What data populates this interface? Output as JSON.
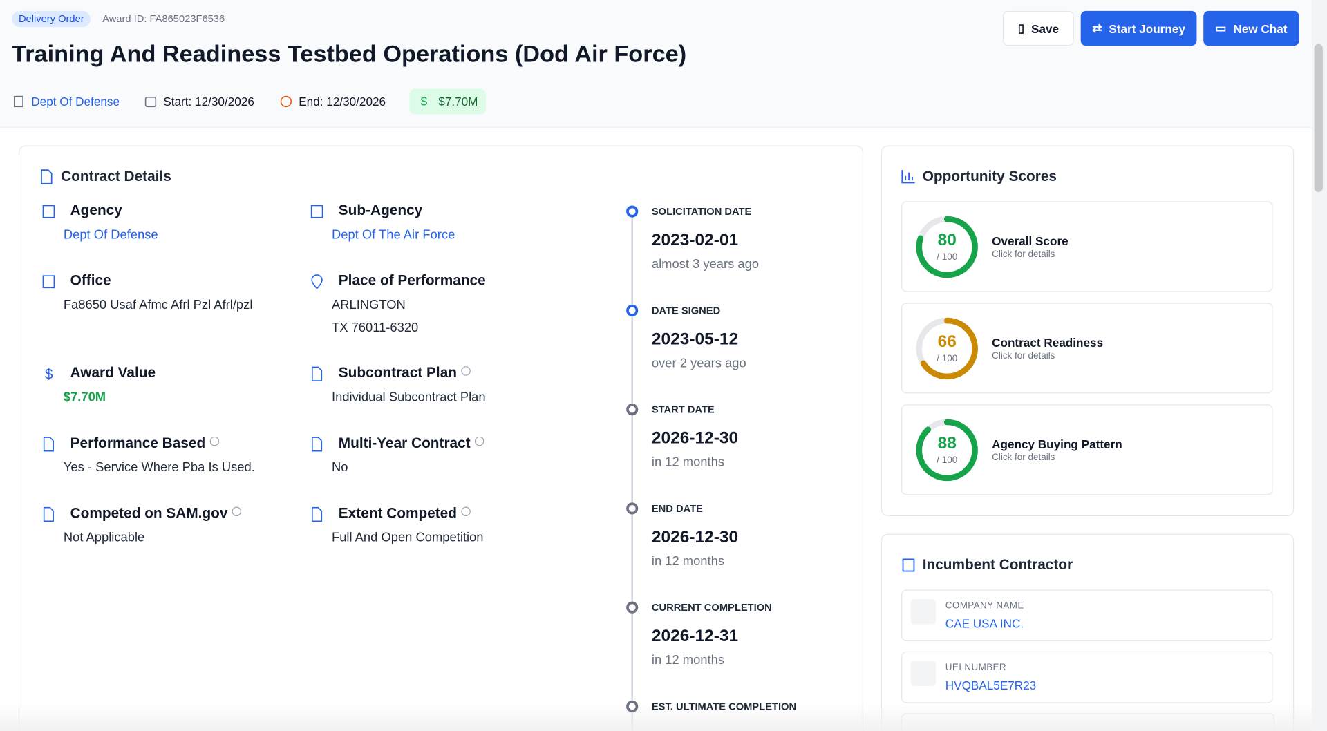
{
  "header": {
    "badge": "Delivery Order",
    "award_id": "Award ID: FA865023F6536",
    "title": "Training And Readiness Testbed Operations (Dod Air Force)",
    "meta": {
      "agency": "Dept Of Defense",
      "start": "Start: 12/30/2026",
      "end": "End: 12/30/2026",
      "value": "$7.70M"
    },
    "buttons": {
      "save": "Save",
      "journey": "Start Journey",
      "chat": "New Chat"
    }
  },
  "contract_details": {
    "title": "Contract Details",
    "fields": [
      {
        "label": "Agency",
        "value": "Dept Of Defense"
      },
      {
        "label": "Sub-Agency",
        "value": "Dept Of The Air Force"
      },
      {
        "label": "Office",
        "value": "Fa8650 Usaf Afmc Afrl Pzl Afrl/pzl"
      },
      {
        "label": "Place of Performance",
        "value": "ARLINGTON",
        "value2": "TX 76011-6320"
      },
      {
        "label": "Award Value",
        "value": "$7.70M"
      },
      {
        "label": "Subcontract Plan",
        "value": "Individual Subcontract Plan"
      },
      {
        "label": "Performance Based",
        "value": "Yes - Service Where Pba Is Used."
      },
      {
        "label": "Multi-Year Contract",
        "value": "No"
      },
      {
        "label": "Competed on SAM.gov",
        "value": "Not Applicable"
      },
      {
        "label": "Extent Competed",
        "value": "Full And Open Competition"
      }
    ],
    "timeline": [
      {
        "label": "SOLICITATION DATE",
        "date": "2023-02-01",
        "relative": "almost 3 years ago"
      },
      {
        "label": "DATE SIGNED",
        "date": "2023-05-12",
        "relative": "over 2 years ago"
      },
      {
        "label": "START DATE",
        "date": "2026-12-30",
        "relative": "in 12 months"
      },
      {
        "label": "END DATE",
        "date": "2026-12-30",
        "relative": "in 12 months"
      },
      {
        "label": "CURRENT COMPLETION",
        "date": "2026-12-31",
        "relative": "in 12 months"
      },
      {
        "label": "EST. ULTIMATE COMPLETION"
      }
    ]
  },
  "scores": {
    "title": "Opportunity Scores",
    "items": [
      {
        "name": "Overall Score",
        "value": 80,
        "max": {
          "value": 100,
          "label": "/ 100"
        },
        "hint": "Click for details",
        "color": "#16a34a"
      },
      {
        "name": "Contract Readiness",
        "value": 66,
        "max": {
          "value": 100,
          "label": "/ 100"
        },
        "hint": "Click for details",
        "color": "#ca8a04"
      },
      {
        "name": "Agency Buying Pattern",
        "value": 88,
        "max": {
          "value": 100,
          "label": "/ 100"
        },
        "hint": "Click for details",
        "color": "#16a34a"
      }
    ]
  },
  "incumbent": {
    "title": "Incumbent Contractor",
    "items": [
      {
        "label": "COMPANY NAME",
        "value": "CAE USA INC."
      },
      {
        "label": "UEI NUMBER",
        "value": "HVQBAL5E7R23"
      }
    ]
  }
}
